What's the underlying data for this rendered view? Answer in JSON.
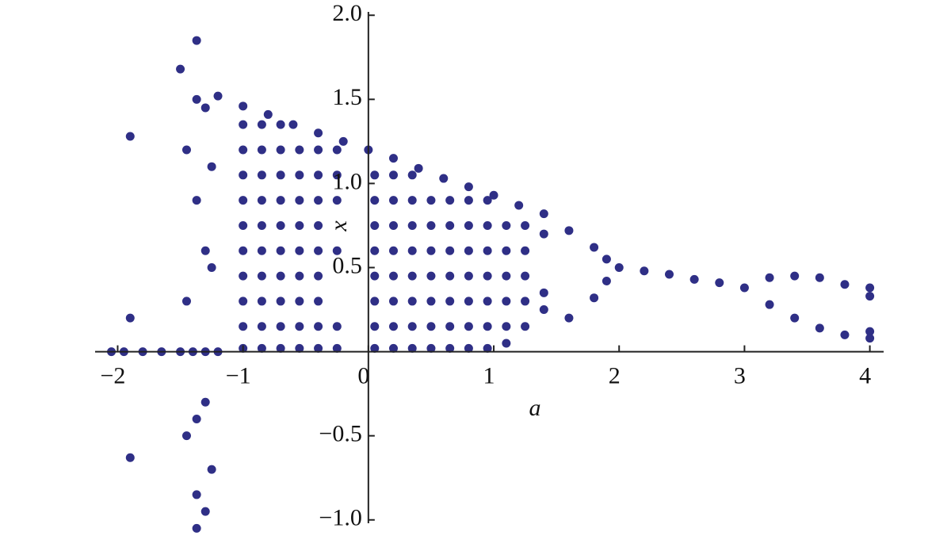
{
  "chart_data": {
    "type": "scatter",
    "x_label": "a",
    "y_label": "x",
    "xlim": [
      -2.18,
      4.11
    ],
    "ylim": [
      -1.02,
      2.02
    ],
    "xticks": [
      {
        "value": -2,
        "label": "−2"
      },
      {
        "value": -1,
        "label": "−1"
      },
      0,
      1,
      2,
      3,
      4
    ],
    "yticks": [
      {
        "value": -1.0,
        "label": "−1.0"
      },
      {
        "value": -0.5,
        "label": "−0.5"
      },
      {
        "value": 0.5,
        "label": "0.5"
      },
      {
        "value": 1.0,
        "label": "1.0"
      },
      {
        "value": 1.5,
        "label": "1.5"
      },
      {
        "value": 2.0,
        "label": "2.0"
      }
    ],
    "color": "#2f2f86",
    "x": [
      -2.05,
      -1.95,
      -1.8,
      -1.65,
      -1.5,
      -1.4,
      -1.3,
      -1.2,
      -1.9,
      -1.9,
      -1.9,
      -1.5,
      -1.37,
      -1.37,
      -1.37,
      -1.37,
      -1.37,
      -1.37,
      -1.3,
      -1.3,
      -1.3,
      -1.3,
      -1.45,
      -1.45,
      -1.45,
      -1.25,
      -1.25,
      -1.25,
      -1.2,
      -1.0,
      -0.8,
      -0.6,
      -0.4,
      -0.2,
      0,
      0.2,
      0.4,
      0.6,
      0.8,
      1.0,
      1.2,
      1.4,
      1.6,
      1.6,
      1.8,
      1.8,
      1.9,
      1.9,
      2.0,
      2.2,
      2.4,
      2.6,
      2.8,
      3.0,
      3.2,
      3.2,
      3.4,
      3.4,
      3.6,
      3.6,
      3.8,
      3.8,
      4.0,
      4.0,
      4.0,
      4.0,
      -1.0,
      -1.0,
      -1.0,
      -1.0,
      -1.0,
      -1.0,
      -1.0,
      -1.0,
      -1.0,
      -1.0,
      -0.85,
      -0.85,
      -0.85,
      -0.85,
      -0.85,
      -0.85,
      -0.85,
      -0.85,
      -0.85,
      -0.85,
      -0.7,
      -0.7,
      -0.7,
      -0.7,
      -0.7,
      -0.7,
      -0.7,
      -0.7,
      -0.7,
      -0.7,
      -0.55,
      -0.55,
      -0.55,
      -0.55,
      -0.55,
      -0.55,
      -0.55,
      -0.55,
      -0.55,
      -0.4,
      -0.4,
      -0.4,
      -0.4,
      -0.4,
      -0.4,
      -0.4,
      -0.4,
      -0.4,
      -0.25,
      -0.25,
      -0.25,
      -0.25,
      -0.25,
      -0.25,
      0.05,
      0.05,
      0.05,
      0.05,
      0.05,
      0.05,
      0.05,
      0.05,
      0.2,
      0.2,
      0.2,
      0.2,
      0.2,
      0.2,
      0.2,
      0.2,
      0.35,
      0.35,
      0.35,
      0.35,
      0.35,
      0.35,
      0.35,
      0.35,
      0.5,
      0.5,
      0.5,
      0.5,
      0.5,
      0.5,
      0.5,
      0.65,
      0.65,
      0.65,
      0.65,
      0.65,
      0.65,
      0.65,
      0.8,
      0.8,
      0.8,
      0.8,
      0.8,
      0.8,
      0.8,
      0.95,
      0.95,
      0.95,
      0.95,
      0.95,
      0.95,
      0.95,
      1.1,
      1.1,
      1.1,
      1.1,
      1.1,
      1.1,
      1.25,
      1.25,
      1.25,
      1.25,
      1.25,
      1.4,
      1.4,
      1.4
    ],
    "values": [
      0,
      0,
      0,
      0,
      0,
      0,
      0,
      0,
      1.28,
      0.2,
      -0.63,
      1.68,
      1.85,
      1.5,
      0.9,
      -0.4,
      -0.85,
      -1.05,
      1.45,
      0.6,
      -0.3,
      -0.95,
      1.2,
      0.3,
      -0.5,
      1.1,
      0.5,
      -0.7,
      1.52,
      1.46,
      1.41,
      1.35,
      1.3,
      1.25,
      1.2,
      1.15,
      1.09,
      1.03,
      0.98,
      0.93,
      0.87,
      0.82,
      0.72,
      0.2,
      0.62,
      0.32,
      0.55,
      0.42,
      0.5,
      0.48,
      0.46,
      0.43,
      0.41,
      0.38,
      0.44,
      0.28,
      0.45,
      0.2,
      0.44,
      0.14,
      0.4,
      0.1,
      0.38,
      0.33,
      0.12,
      0.08,
      0.02,
      0.15,
      0.3,
      0.45,
      0.6,
      0.75,
      0.9,
      1.05,
      1.2,
      1.35,
      0.02,
      0.15,
      0.3,
      0.45,
      0.6,
      0.75,
      0.9,
      1.05,
      1.2,
      1.35,
      0.02,
      0.15,
      0.3,
      0.45,
      0.6,
      0.75,
      0.9,
      1.05,
      1.2,
      1.35,
      0.02,
      0.15,
      0.3,
      0.45,
      0.6,
      0.75,
      0.9,
      1.05,
      1.2,
      0.02,
      0.15,
      0.3,
      0.45,
      0.6,
      0.75,
      0.9,
      1.05,
      1.2,
      0.02,
      0.15,
      0.6,
      0.9,
      1.05,
      1.2,
      0.02,
      0.15,
      0.3,
      0.45,
      0.6,
      0.75,
      0.9,
      1.05,
      0.02,
      0.15,
      0.3,
      0.45,
      0.6,
      0.75,
      0.9,
      1.05,
      0.02,
      0.15,
      0.3,
      0.45,
      0.6,
      0.75,
      0.9,
      1.05,
      0.02,
      0.15,
      0.3,
      0.45,
      0.6,
      0.75,
      0.9,
      0.02,
      0.15,
      0.3,
      0.45,
      0.6,
      0.75,
      0.9,
      0.02,
      0.15,
      0.3,
      0.45,
      0.6,
      0.75,
      0.9,
      0.02,
      0.15,
      0.3,
      0.45,
      0.6,
      0.75,
      0.9,
      0.05,
      0.15,
      0.3,
      0.45,
      0.6,
      0.75,
      0.15,
      0.3,
      0.45,
      0.6,
      0.75,
      0.25,
      0.35,
      0.7
    ]
  }
}
